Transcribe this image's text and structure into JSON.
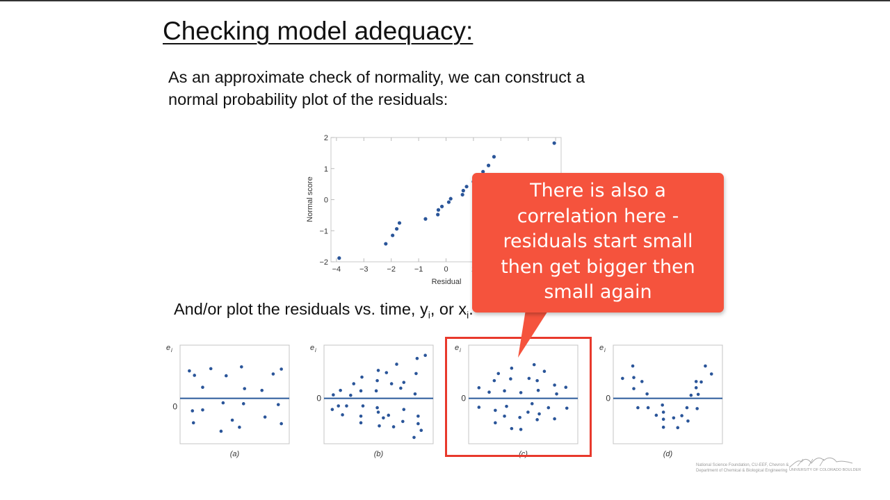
{
  "slide": {
    "title": "Checking model adequacy:",
    "para1_line1": "As an approximate check of normality, we can construct a",
    "para1_line2": "normal probability plot of the residuals:",
    "para2_prefix": "And/or plot the residuals vs. time, y",
    "para2_sub1": "i",
    "para2_mid": ", or x",
    "para2_sub2": "i",
    "para2_suffix": "."
  },
  "callout": {
    "lines": [
      "There is also a",
      "correlation here -",
      "residuals start small",
      "then get bigger then",
      "small again"
    ],
    "color": "#f5533d"
  },
  "footer": {
    "credit_line1": "National Science Foundation, CU-EEF, Chevron &",
    "credit_line2": "Department of Chemical & Biological Engineering",
    "university": "UNIVERSITY OF COLORADO BOULDER"
  },
  "colors": {
    "point": "#2a5599",
    "zero_line": "#2a5a9a",
    "highlight_box": "#e8392c"
  },
  "chart_data": [
    {
      "type": "scatter",
      "title": "",
      "xlabel": "Residual",
      "ylabel": "Normal score",
      "xlim": [
        -4.2,
        4.2
      ],
      "ylim": [
        -2,
        2
      ],
      "xticks": [
        "-4",
        "-3",
        "-2",
        "-1",
        "0",
        "1"
      ],
      "yticks": [
        "2",
        "1",
        "0",
        "-1",
        "-2"
      ],
      "grid": false,
      "points": [
        [
          -3.9,
          -1.88
        ],
        [
          -2.2,
          -1.42
        ],
        [
          -1.95,
          -1.15
        ],
        [
          -1.8,
          -0.94
        ],
        [
          -1.7,
          -0.75
        ],
        [
          -0.75,
          -0.62
        ],
        [
          -0.3,
          -0.48
        ],
        [
          -0.28,
          -0.33
        ],
        [
          -0.15,
          -0.22
        ],
        [
          0.1,
          -0.08
        ],
        [
          0.17,
          0.03
        ],
        [
          0.6,
          0.16
        ],
        [
          0.63,
          0.29
        ],
        [
          0.75,
          0.42
        ],
        [
          1.0,
          0.58
        ],
        [
          1.35,
          0.9
        ],
        [
          1.55,
          1.1
        ],
        [
          1.75,
          1.38
        ],
        [
          3.95,
          1.82
        ]
      ]
    },
    {
      "type": "scatter",
      "label": "(a)",
      "ylabel": "e_i",
      "zero_label": "0",
      "points": [
        [
          5,
          0.62
        ],
        [
          10,
          0.52
        ],
        [
          18,
          0.25
        ],
        [
          26,
          0.67
        ],
        [
          41,
          0.51
        ],
        [
          56,
          0.71
        ],
        [
          59,
          0.22
        ],
        [
          76,
          0.18
        ],
        [
          87,
          0.55
        ],
        [
          95,
          0.66
        ],
        [
          8,
          -0.28
        ],
        [
          9,
          -0.55
        ],
        [
          18,
          -0.26
        ],
        [
          38,
          -0.1
        ],
        [
          58,
          -0.12
        ],
        [
          54,
          -0.65
        ],
        [
          79,
          -0.42
        ],
        [
          92,
          -0.14
        ],
        [
          47,
          -0.49
        ],
        [
          36,
          -0.74
        ],
        [
          95,
          -0.57
        ]
      ]
    },
    {
      "type": "scatter",
      "label": "(b)",
      "ylabel": "e_i",
      "zero_label": "0",
      "points": [
        [
          5,
          0.08
        ],
        [
          12,
          0.18
        ],
        [
          22,
          0.07
        ],
        [
          25,
          0.33
        ],
        [
          32,
          0.17
        ],
        [
          33,
          0.48
        ],
        [
          47,
          0.17
        ],
        [
          48,
          0.4
        ],
        [
          49,
          0.63
        ],
        [
          57,
          0.58
        ],
        [
          62,
          0.33
        ],
        [
          67,
          0.77
        ],
        [
          71,
          0.23
        ],
        [
          74,
          0.36
        ],
        [
          85,
          0.1
        ],
        [
          86,
          0.56
        ],
        [
          87,
          0.9
        ],
        [
          95,
          0.97
        ],
        [
          4,
          -0.25
        ],
        [
          10,
          -0.17
        ],
        [
          14,
          -0.37
        ],
        [
          18,
          -0.17
        ],
        [
          32,
          -0.4
        ],
        [
          32,
          -0.55
        ],
        [
          34,
          -0.17
        ],
        [
          48,
          -0.21
        ],
        [
          49,
          -0.31
        ],
        [
          50,
          -0.62
        ],
        [
          54,
          -0.44
        ],
        [
          59,
          -0.38
        ],
        [
          64,
          -0.64
        ],
        [
          73,
          -0.52
        ],
        [
          74,
          -0.25
        ],
        [
          84,
          -0.88
        ],
        [
          88,
          -0.4
        ],
        [
          88,
          -0.57
        ],
        [
          91,
          -0.72
        ]
      ]
    },
    {
      "type": "scatter",
      "label": "(c)",
      "ylabel": "e_i",
      "zero_label": "0",
      "points": [
        [
          6,
          0.24
        ],
        [
          16,
          0.14
        ],
        [
          21,
          0.4
        ],
        [
          25,
          0.56
        ],
        [
          31,
          0.17
        ],
        [
          37,
          0.44
        ],
        [
          38,
          0.68
        ],
        [
          47,
          0.13
        ],
        [
          55,
          0.45
        ],
        [
          60,
          0.76
        ],
        [
          63,
          0.4
        ],
        [
          64,
          0.18
        ],
        [
          70,
          0.61
        ],
        [
          80,
          0.3
        ],
        [
          82,
          0.1
        ],
        [
          91,
          0.25
        ],
        [
          6,
          -0.2
        ],
        [
          22,
          -0.27
        ],
        [
          22,
          -0.55
        ],
        [
          31,
          -0.4
        ],
        [
          33,
          -0.18
        ],
        [
          38,
          -0.68
        ],
        [
          46,
          -0.43
        ],
        [
          47,
          -0.7
        ],
        [
          54,
          -0.31
        ],
        [
          58,
          -0.12
        ],
        [
          63,
          -0.48
        ],
        [
          65,
          -0.35
        ],
        [
          74,
          -0.21
        ],
        [
          80,
          -0.46
        ],
        [
          92,
          -0.22
        ]
      ]
    },
    {
      "type": "scatter",
      "label": "(d)",
      "ylabel": "e_i",
      "zero_label": "0",
      "points": [
        [
          5,
          0.45
        ],
        [
          15,
          0.73
        ],
        [
          16,
          0.47
        ],
        [
          16,
          0.22
        ],
        [
          24,
          0.38
        ],
        [
          29,
          0.1
        ],
        [
          20,
          -0.21
        ],
        [
          30,
          -0.21
        ],
        [
          38,
          -0.38
        ],
        [
          44,
          -0.15
        ],
        [
          45,
          -0.31
        ],
        [
          45,
          -0.47
        ],
        [
          45,
          -0.65
        ],
        [
          55,
          -0.44
        ],
        [
          59,
          -0.66
        ],
        [
          63,
          -0.39
        ],
        [
          68,
          -0.21
        ],
        [
          69,
          -0.51
        ],
        [
          72,
          0.07
        ],
        [
          77,
          0.38
        ],
        [
          77,
          0.24
        ],
        [
          78,
          -0.23
        ],
        [
          79,
          0.09
        ],
        [
          82,
          0.37
        ],
        [
          86,
          0.73
        ],
        [
          92,
          0.55
        ]
      ]
    }
  ]
}
